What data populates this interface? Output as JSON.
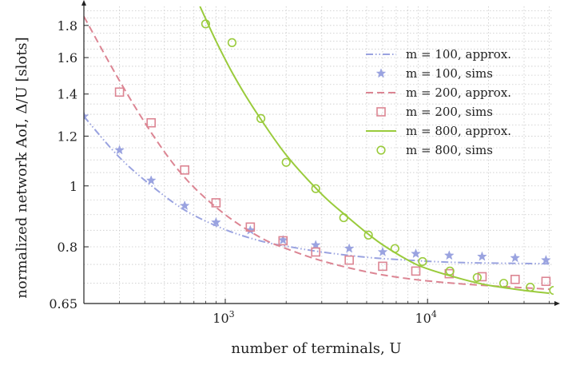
{
  "chart_data": {
    "type": "line",
    "xlabel": "number of terminals, U",
    "ylabel": "normalized network AoI, Δ/U [slots]",
    "xscale": "log",
    "yscale": "log",
    "xlim": [
      200,
      42000
    ],
    "ylim": [
      0.65,
      1.93
    ],
    "x_ticks": [
      {
        "value": 1000,
        "base": "10",
        "exp": "3"
      },
      {
        "value": 10000,
        "base": "10",
        "exp": "4"
      }
    ],
    "y_ticks": [
      {
        "value": 0.65,
        "label": "0.65"
      },
      {
        "value": 0.8,
        "label": "0.8"
      },
      {
        "value": 1.0,
        "label": "1"
      },
      {
        "value": 1.2,
        "label": "1.2"
      },
      {
        "value": 1.4,
        "label": "1.4"
      },
      {
        "value": 1.6,
        "label": "1.6"
      },
      {
        "value": 1.8,
        "label": "1.8"
      }
    ],
    "grid": true,
    "legend_position": "top-right",
    "series": [
      {
        "name": "m = 100, approx.",
        "kind": "line",
        "dash": "dash-dot-dot",
        "color": "#9aa3e0",
        "x": [
          200,
          300,
          450,
          650,
          1000,
          1500,
          2000,
          3000,
          5000,
          8000,
          15000,
          40000
        ],
        "y": [
          1.29,
          1.11,
          0.99,
          0.91,
          0.852,
          0.817,
          0.802,
          0.785,
          0.77,
          0.762,
          0.755,
          0.752
        ]
      },
      {
        "name": "m = 100, sims",
        "kind": "marker",
        "marker": "star",
        "color": "#9aa3e0",
        "x": [
          200,
          300,
          430,
          630,
          900,
          1330,
          1930,
          2800,
          4100,
          6000,
          8750,
          12800,
          18600,
          27100,
          38500
        ],
        "y": [
          1.29,
          1.14,
          1.02,
          0.93,
          0.875,
          0.85,
          0.82,
          0.805,
          0.795,
          0.785,
          0.78,
          0.775,
          0.772,
          0.768,
          0.762
        ]
      },
      {
        "name": "m = 200, approx.",
        "kind": "line",
        "dash": "dashed",
        "color": "#dc8593",
        "x": [
          200,
          300,
          450,
          650,
          1000,
          1500,
          2000,
          3000,
          5000,
          8000,
          15000,
          40000
        ],
        "y": [
          1.86,
          1.47,
          1.19,
          1.02,
          0.9,
          0.827,
          0.795,
          0.76,
          0.73,
          0.712,
          0.698,
          0.685
        ]
      },
      {
        "name": "m = 200, sims",
        "kind": "marker",
        "marker": "square",
        "color": "#dc8593",
        "x": [
          300,
          430,
          630,
          900,
          1330,
          1930,
          2800,
          4100,
          6000,
          8750,
          12800,
          18600,
          27100,
          38500
        ],
        "y": [
          1.41,
          1.26,
          1.06,
          0.94,
          0.86,
          0.818,
          0.785,
          0.762,
          0.745,
          0.732,
          0.725,
          0.717,
          0.71,
          0.705
        ]
      },
      {
        "name": "m = 800, approx.",
        "kind": "line",
        "dash": "solid",
        "color": "#9acb3c",
        "x": [
          750,
          900,
          1100,
          1400,
          2000,
          3000,
          4000,
          5000,
          6000,
          8000,
          10000,
          15000,
          20000,
          30000,
          40000
        ],
        "y": [
          1.93,
          1.7,
          1.5,
          1.32,
          1.12,
          0.97,
          0.894,
          0.842,
          0.806,
          0.762,
          0.738,
          0.71,
          0.695,
          0.682,
          0.675
        ]
      },
      {
        "name": "m = 800, sims",
        "kind": "marker",
        "marker": "circle",
        "color": "#9acb3c",
        "x": [
          800,
          1080,
          1500,
          2000,
          2800,
          3850,
          5100,
          6900,
          9450,
          12900,
          17600,
          23800,
          32200,
          42000
        ],
        "y": [
          1.81,
          1.69,
          1.28,
          1.09,
          0.99,
          0.89,
          0.835,
          0.795,
          0.758,
          0.732,
          0.715,
          0.7,
          0.69,
          0.682
        ]
      }
    ]
  }
}
